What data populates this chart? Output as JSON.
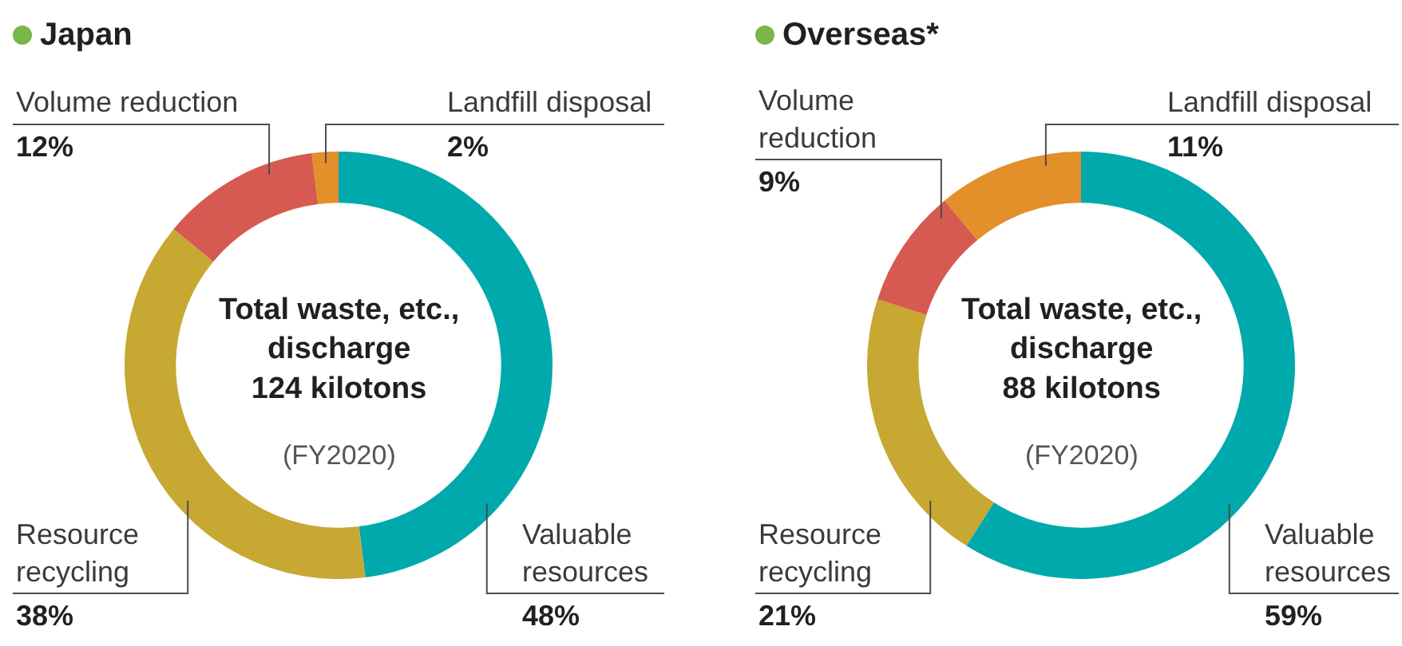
{
  "chart_data": [
    {
      "type": "donut",
      "title": "Japan",
      "categories": [
        "Valuable\nresources",
        "Resource\nrecycling",
        "Volume reduction",
        "Landfill disposal"
      ],
      "values": [
        48,
        38,
        12,
        2
      ],
      "colors": [
        "#00a9ab",
        "#c6a832",
        "#d65a51",
        "#e38f2a"
      ],
      "value_labels": [
        "48%",
        "38%",
        "12%",
        "2%"
      ],
      "annotations": [
        "Total waste, etc.,\ndischarge\n124 kilotons",
        "(FY2020)"
      ]
    },
    {
      "type": "donut",
      "title": "Overseas*",
      "categories": [
        "Valuable\nresources",
        "Resource\nrecycling",
        "Volume\nreduction",
        "Landfill disposal"
      ],
      "values": [
        59,
        21,
        9,
        11
      ],
      "colors": [
        "#00a9ab",
        "#c6a832",
        "#d65a51",
        "#e38f2a"
      ],
      "value_labels": [
        "59%",
        "21%",
        "9%",
        "11%"
      ],
      "annotations": [
        "Total waste, etc.,\ndischarge\n88 kilotons",
        "(FY2020)"
      ]
    }
  ]
}
